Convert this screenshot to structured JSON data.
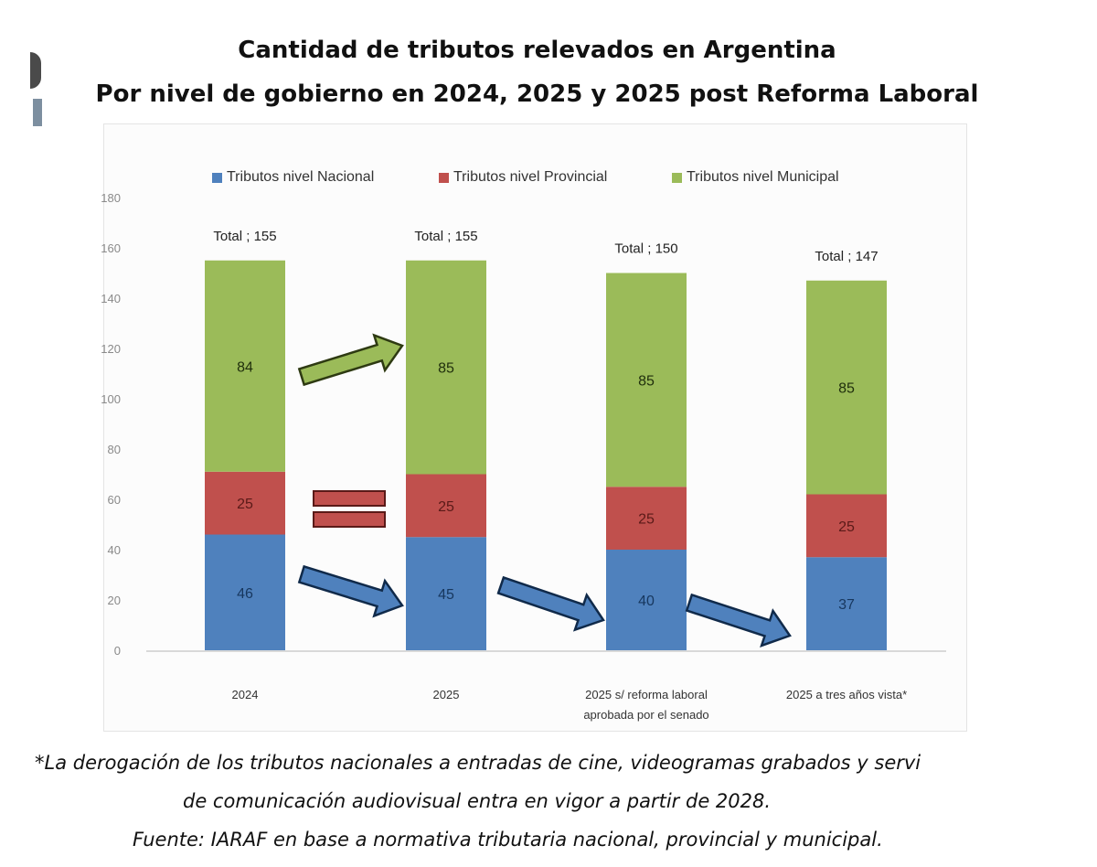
{
  "chart_data": {
    "type": "bar",
    "stacked": true,
    "title": "Cantidad de tributos relevados en Argentina",
    "subtitle": "Por nivel de gobierno en 2024, 2025 y 2025 post Reforma Laboral",
    "xlabel": "",
    "ylabel": "",
    "ylim": [
      0,
      180
    ],
    "yticks": [
      0,
      20,
      40,
      60,
      80,
      100,
      120,
      140,
      160,
      180
    ],
    "grid": false,
    "legend_position": "top",
    "categories": [
      "2024",
      "2025",
      "2025 s/ reforma laboral aprobada por el senado",
      "2025 a tres años vista*"
    ],
    "category_label_lines": [
      [
        "2024"
      ],
      [
        "2025"
      ],
      [
        "2025 s/ reforma laboral",
        "aprobada por el senado"
      ],
      [
        "2025 a tres años vista*"
      ]
    ],
    "series": [
      {
        "name": "Tributos nivel Nacional",
        "color": "#4f81bd",
        "label_color": "#17375e",
        "values": [
          46,
          45,
          40,
          37
        ]
      },
      {
        "name": "Tributos nivel Provincial",
        "color": "#c0504d",
        "label_color": "#5a1a18",
        "values": [
          25,
          25,
          25,
          25
        ]
      },
      {
        "name": "Tributos nivel Municipal",
        "color": "#9bbb59",
        "label_color": "#1f2e0c",
        "values": [
          84,
          85,
          85,
          85
        ]
      }
    ],
    "totals": [
      155,
      155,
      150,
      147
    ],
    "total_labels": [
      "Total ; 155",
      "Total ; 155",
      "Total ; 150",
      "Total ; 147"
    ],
    "annotations": [
      {
        "type": "arrow",
        "series": "Tributos nivel Municipal",
        "from_category": "2024",
        "to_category": "2025",
        "meaning": "increase",
        "color": "#9bbb59"
      },
      {
        "type": "equals-sign",
        "series": "Tributos nivel Provincial",
        "between": [
          "2024",
          "2025"
        ],
        "meaning": "unchanged",
        "color": "#c0504d"
      },
      {
        "type": "arrow",
        "series": "Tributos nivel Nacional",
        "from_category": "2024",
        "to_category": "2025",
        "meaning": "decrease",
        "color": "#4f81bd"
      },
      {
        "type": "arrow",
        "series": "Tributos nivel Nacional",
        "from_category": "2025",
        "to_category": "2025 s/ reforma laboral aprobada por el senado",
        "meaning": "decrease",
        "color": "#4f81bd"
      },
      {
        "type": "arrow",
        "series": "Tributos nivel Nacional",
        "from_category": "2025 s/ reforma laboral aprobada por el senado",
        "to_category": "2025 a tres años vista*",
        "meaning": "decrease",
        "color": "#4f81bd"
      }
    ]
  },
  "footnotes": [
    "*La derogación de los tributos nacionales a entradas de cine, videogramas grabados y servi",
    "de comunicación audiovisual entra en vigor a partir de 2028.",
    "Fuente: IARAF en base a normativa tributaria nacional, provincial y municipal."
  ]
}
